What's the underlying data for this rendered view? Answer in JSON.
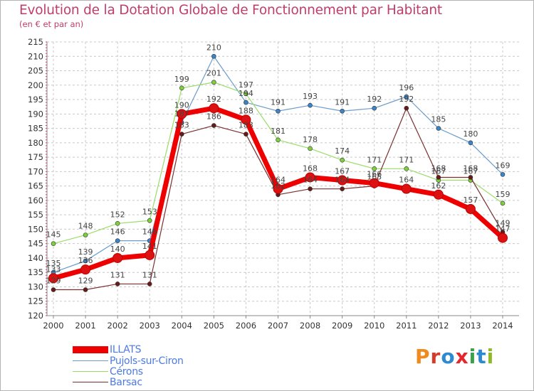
{
  "title": "Evolution de la Dotation Globale de Fonctionnement par Habitant",
  "subtitle": "(en € et par an)",
  "brand": {
    "text": "Proxiti",
    "colors": [
      "#f08a1d",
      "#d33c2a",
      "#2d8ad1",
      "#e4272d",
      "#3aa14a",
      "#2d8ad1",
      "#8fb926"
    ]
  },
  "chart_data": {
    "type": "line",
    "title": "Evolution de la Dotation Globale de Fonctionnement par Habitant",
    "subtitle": "(en € et par an)",
    "xlabel": "",
    "ylabel": "",
    "x": [
      "2000",
      "2001",
      "2002",
      "2003",
      "2004",
      "2005",
      "2006",
      "2007",
      "2008",
      "2009",
      "2010",
      "2011",
      "2012",
      "2013",
      "2014"
    ],
    "ylim": [
      120,
      215
    ],
    "yticks": [
      120,
      125,
      130,
      135,
      140,
      145,
      150,
      155,
      160,
      165,
      170,
      175,
      180,
      185,
      190,
      195,
      200,
      205,
      210,
      215
    ],
    "grid": true,
    "legend": "bottom-left",
    "series": [
      {
        "name": "Pujols-sur-Ciron",
        "color": "#6b9ccc",
        "marker": "#3a84c9",
        "values": [
          135,
          139,
          146,
          146,
          187,
          210,
          194,
          191,
          193,
          191,
          192,
          196,
          185,
          180,
          169
        ],
        "labels": [
          "135",
          "139",
          "146",
          "146",
          "187",
          "210",
          "194",
          "191",
          "193",
          "191",
          "192",
          "196",
          "185",
          "180",
          "169"
        ]
      },
      {
        "name": "Cérons",
        "color": "#99dd66",
        "marker": "#7fd13b",
        "values": [
          145,
          148,
          152,
          153,
          199,
          201,
          197,
          181,
          178,
          174,
          171,
          171,
          167,
          167,
          159
        ],
        "labels": [
          "145",
          "148",
          "152",
          "153",
          "199",
          "201",
          "197",
          "181",
          "178",
          "174",
          "171",
          "171",
          "167",
          "167",
          "159"
        ]
      },
      {
        "name": "Barsac",
        "color": "#7a3030",
        "marker": "#661a1a",
        "values": [
          129,
          129,
          131,
          131,
          183,
          186,
          183,
          162,
          164,
          164,
          165,
          192,
          168,
          168,
          149
        ],
        "labels": [
          "129",
          "129",
          "131",
          "131",
          "183",
          "186",
          "183",
          "162",
          "164",
          "164",
          "165",
          "192",
          "168",
          "168",
          "149"
        ]
      },
      {
        "name": "ILLATS",
        "color": "#ee0000",
        "marker": "#dd1111",
        "values": [
          133,
          136,
          140,
          141,
          190,
          192,
          188,
          164,
          168,
          167,
          166,
          164,
          162,
          157,
          147
        ],
        "labels": [
          "133",
          "136",
          "140",
          "141",
          "190",
          "192",
          "188",
          "164",
          "168",
          "167",
          "166",
          "164",
          "162",
          "157",
          "147"
        ]
      }
    ]
  },
  "legend": [
    {
      "label": "ILLATS",
      "color": "#ee0000"
    },
    {
      "label": "Pujols-sur-Ciron",
      "color": "#6b9ccc"
    },
    {
      "label": "Cérons",
      "color": "#99dd66"
    },
    {
      "label": "Barsac",
      "color": "#7a3030"
    }
  ]
}
